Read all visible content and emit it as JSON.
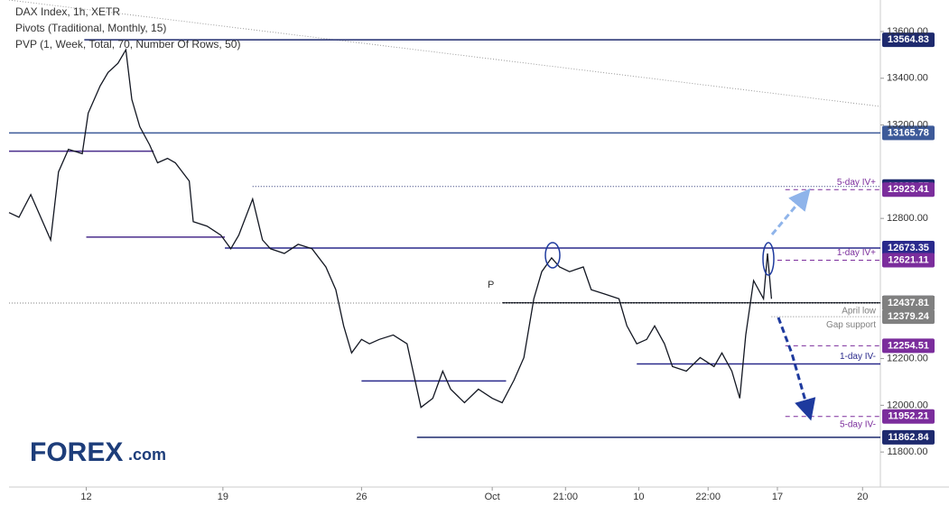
{
  "chart_data": {
    "type": "line",
    "header": [
      "DAX Index, 1h, XETR",
      "Pivots (Traditional, Monthly, 15)",
      "PVP (1, Week, Total, 70, Number Of Rows, 50)"
    ],
    "pivot_marker": "P",
    "logo": "FOREX",
    "logo_suffix": ".com",
    "xlim": [
      0,
      440
    ],
    "ylim": [
      11650,
      13735
    ],
    "xticks": [
      {
        "value": 39,
        "label": "12"
      },
      {
        "value": 108,
        "label": "19"
      },
      {
        "value": 178,
        "label": "26"
      },
      {
        "value": 244,
        "label": "Oct"
      },
      {
        "value": 281,
        "label": "21:00"
      },
      {
        "value": 318,
        "label": "10"
      },
      {
        "value": 353,
        "label": "22:00"
      },
      {
        "value": 388,
        "label": "17"
      },
      {
        "value": 431,
        "label": "20"
      }
    ],
    "yticks": [
      {
        "value": 13600,
        "label": "13600.00"
      },
      {
        "value": 13400,
        "label": "13400.00"
      },
      {
        "value": 13200,
        "label": "13200.00"
      },
      {
        "value": 12800,
        "label": "12800.00"
      },
      {
        "value": 12200,
        "label": "12200.00"
      },
      {
        "value": 12000,
        "label": "12000.00"
      },
      {
        "value": 11800,
        "label": "11800.00"
      }
    ],
    "series": [
      {
        "name": "DAX Index",
        "color": "#131722",
        "x": [
          0,
          5,
          11,
          16,
          21,
          25,
          30,
          37,
          40,
          46,
          50,
          55,
          59,
          62,
          66,
          71,
          75,
          80,
          84,
          91,
          93,
          100,
          107,
          112,
          116,
          123,
          128,
          132,
          139,
          146,
          153,
          160,
          165,
          169,
          173,
          178,
          182,
          187,
          194,
          201,
          208,
          214,
          219,
          223,
          230,
          237,
          244,
          249,
          255,
          260,
          265,
          269,
          274,
          278,
          283,
          290,
          294,
          301,
          308,
          312,
          317,
          322,
          326,
          331,
          335,
          342,
          349,
          356,
          360,
          365,
          369,
          372,
          376,
          381,
          383,
          385
        ],
        "values": [
          12825,
          12805,
          12902,
          12805,
          12708,
          12999,
          13096,
          13077,
          13251,
          13367,
          13425,
          13464,
          13522,
          13309,
          13193,
          13115,
          13038,
          13057,
          13038,
          12960,
          12786,
          12767,
          12728,
          12670,
          12728,
          12883,
          12708,
          12670,
          12650,
          12689,
          12670,
          12592,
          12495,
          12340,
          12224,
          12282,
          12263,
          12282,
          12301,
          12263,
          11991,
          12030,
          12146,
          12069,
          12011,
          12069,
          12030,
          12011,
          12108,
          12204,
          12456,
          12572,
          12631,
          12592,
          12572,
          12592,
          12495,
          12476,
          12456,
          12340,
          12263,
          12282,
          12340,
          12263,
          12166,
          12146,
          12204,
          12166,
          12224,
          12146,
          12030,
          12301,
          12534,
          12456,
          12650,
          12456
        ]
      }
    ],
    "levels": [
      {
        "value": 13564.83,
        "color": "#1e2a6e",
        "from": 38,
        "to": 440,
        "style": "solid",
        "box": true
      },
      {
        "value": 13165.78,
        "color": "#3d5a99",
        "from": 0,
        "to": 440,
        "style": "solid",
        "box": true
      },
      {
        "value": 13088,
        "color": "#4a2d8c",
        "from": 0,
        "to": 73,
        "style": "solid",
        "box": false
      },
      {
        "value": 12720,
        "color": "#4a2d8c",
        "from": 39,
        "to": 109,
        "style": "solid",
        "box": false
      },
      {
        "value": 12936.57,
        "color": "#1e2a6e",
        "from": 123,
        "to": 440,
        "style": "dotted",
        "box": true
      },
      {
        "value": 12923.41,
        "color": "#7b2d9c",
        "from": 392,
        "to": 440,
        "style": "dashed",
        "box": true,
        "note": "5-day IV+",
        "note_side": "above"
      },
      {
        "value": 12673.35,
        "color": "#2a2a8c",
        "from": 109,
        "to": 440,
        "style": "solid",
        "box": true
      },
      {
        "value": 12621.11,
        "color": "#7b2d9c",
        "from": 388,
        "to": 440,
        "style": "dashed",
        "box": true,
        "note": "1-day IV+",
        "note_side": "above"
      },
      {
        "value": 12438.85,
        "color": "#131722",
        "from": 249,
        "to": 440,
        "style": "solid",
        "box": true
      },
      {
        "value": 12437.81,
        "color": "#808080",
        "from": 0,
        "to": 440,
        "style": "dotted",
        "box": true,
        "note": "April low",
        "note_side": "below"
      },
      {
        "value": 12379.24,
        "color": "#808080",
        "from": 385,
        "to": 440,
        "style": "dotted",
        "box": true,
        "note": "Gap support",
        "note_side": "below"
      },
      {
        "value": 12254.51,
        "color": "#7b2d9c",
        "from": 392,
        "to": 440,
        "style": "dashed",
        "box": true
      },
      {
        "value": 12177,
        "color": "#2a2a8c",
        "from": 317,
        "to": 440,
        "style": "solid",
        "box": false,
        "note": "1-day IV-",
        "note_side": "above"
      },
      {
        "value": 12104,
        "color": "#2a2a8c",
        "from": 178,
        "to": 251,
        "style": "solid",
        "box": false
      },
      {
        "value": 11952.21,
        "color": "#7b2d9c",
        "from": 392,
        "to": 440,
        "style": "dashed",
        "box": true,
        "note": "5-day IV-",
        "note_side": "below"
      },
      {
        "value": 11862.84,
        "color": "#1e2a6e",
        "from": 206,
        "to": 440,
        "style": "solid",
        "box": true
      }
    ]
  }
}
